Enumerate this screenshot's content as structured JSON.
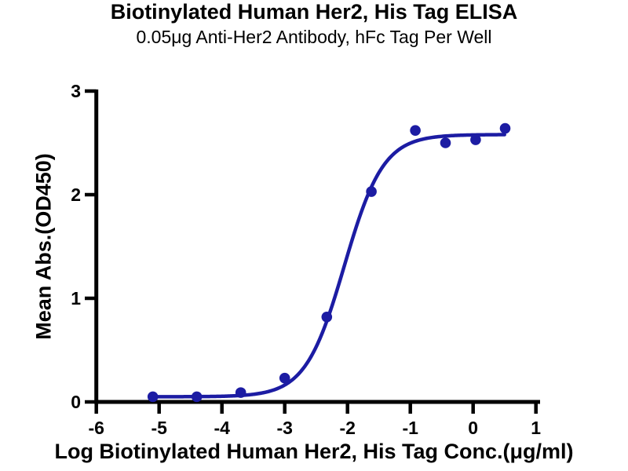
{
  "chart_data": {
    "type": "scatter",
    "title": "Biotinylated Human Her2, His Tag ELISA",
    "subtitle": "0.05μg Anti-Her2 Antibody, hFc Tag Per Well",
    "xlabel": "Log Biotinylated Human Her2, His Tag Conc.(μg/ml)",
    "ylabel": "Mean Abs.(OD450)",
    "xlim": [
      -6,
      1
    ],
    "ylim": [
      0,
      3
    ],
    "x_ticks": [
      -6,
      -5,
      -4,
      -3,
      -2,
      -1,
      0,
      1
    ],
    "y_ticks": [
      0,
      1,
      2,
      3
    ],
    "grid": false,
    "legend_position": "none",
    "points": {
      "x": [
        -5.1,
        -4.4,
        -3.7,
        -3.0,
        -2.33,
        -1.62,
        -0.92,
        -0.44,
        0.04,
        0.51
      ],
      "y": [
        0.05,
        0.05,
        0.09,
        0.23,
        0.82,
        2.03,
        2.62,
        2.5,
        2.53,
        2.64
      ]
    },
    "curve_fit": {
      "model": "4PL-sigmoid",
      "bottom": 0.05,
      "top": 2.58,
      "log_ec50": -2.05,
      "hill": 1.4,
      "x_start": -5.1,
      "x_end": 0.51
    },
    "colors": {
      "points": "#1C1CA3",
      "curve": "#1C1CA3",
      "axis": "#000000",
      "text": "#000000",
      "background": "#FFFFFF"
    }
  }
}
